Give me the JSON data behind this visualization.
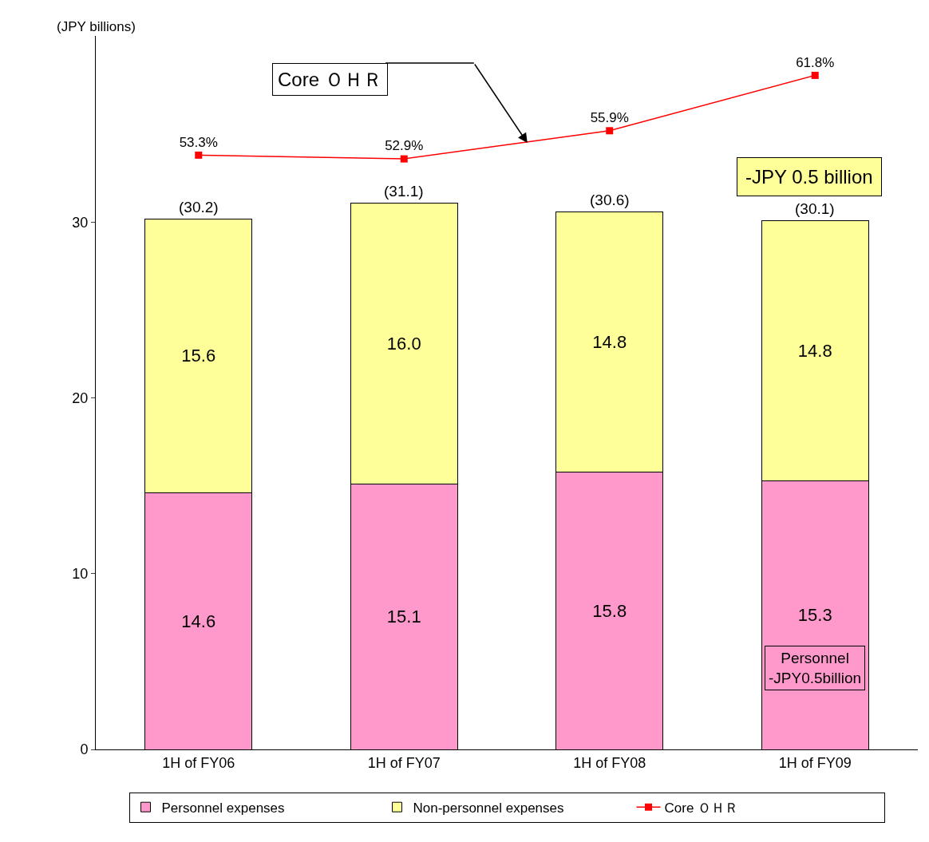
{
  "chart_data": {
    "type": "bar",
    "stacked": true,
    "ylabel": "(JPY billions)",
    "categories": [
      "1H of FY06",
      "1H of FY07",
      "1H of FY08",
      "1H of FY09"
    ],
    "series": [
      {
        "name": "Personnel expenses",
        "color": "#ff99cc",
        "values": [
          14.6,
          15.1,
          15.8,
          15.3
        ],
        "value_labels": [
          "14.6",
          "15.1",
          "15.8",
          "15.3"
        ]
      },
      {
        "name": "Non-personnel expenses",
        "color": "#ffff99",
        "values": [
          15.6,
          16.0,
          14.8,
          14.8
        ],
        "value_labels": [
          "15.6",
          "16.0",
          "14.8",
          "14.8"
        ]
      },
      {
        "name": "Core ＯＨＲ",
        "type": "line",
        "axis": "y2",
        "color": "#ff0000",
        "marker": "square",
        "values": [
          53.3,
          52.9,
          55.9,
          61.8
        ],
        "value_labels": [
          "53.3%",
          "52.9%",
          "55.9%",
          "61.8%"
        ]
      }
    ],
    "totals": [
      "(30.2)",
      "(31.1)",
      "(30.6)",
      "(30.1)"
    ],
    "ylim": [
      0,
      40.6
    ],
    "yticks": [
      0,
      10,
      20,
      30
    ],
    "y2lim": [
      -10,
      66
    ],
    "annotations": [
      "Core ＯＨＲ",
      "-JPY 0.5 billion",
      "Personnel\n-JPY0.5billion"
    ],
    "legend": "bottom"
  }
}
